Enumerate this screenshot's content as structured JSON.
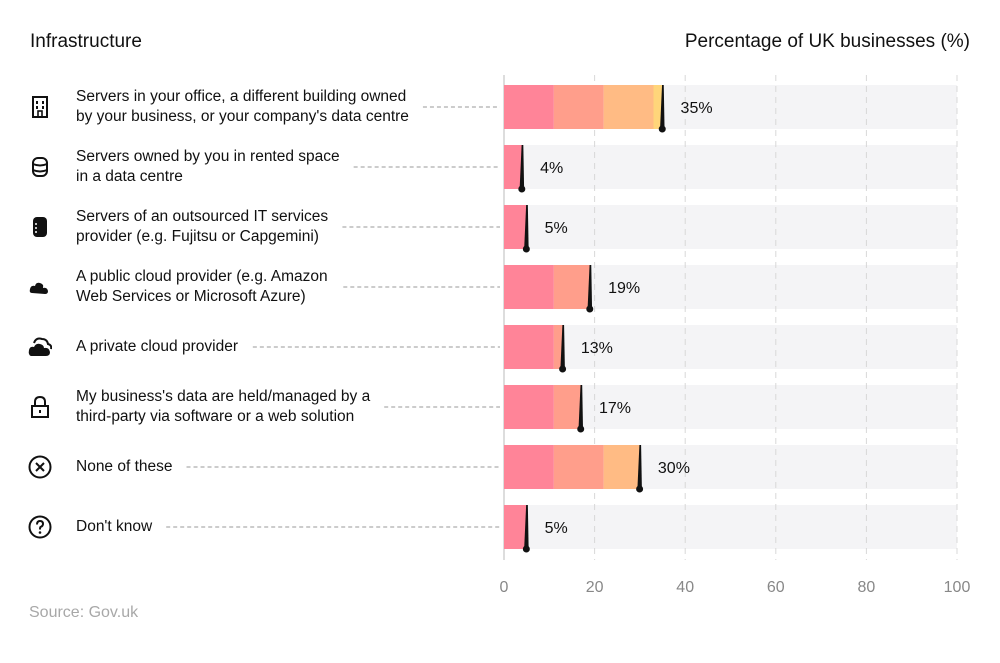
{
  "chart_data": {
    "type": "bar",
    "orientation": "horizontal",
    "left_header": "Infrastructure",
    "xlabel": "Percentage of UK businesses (%)",
    "categories": [
      "Servers in your office, a different building owned\nby your business, or your company's data centre",
      "Servers owned by you in rented space\nin a data centre",
      "Servers of an outsourced IT services\nprovider (e.g. Fujitsu or Capgemini)",
      "A public cloud provider (e.g. Amazon\nWeb Services or Microsoft Azure)",
      "A private cloud provider",
      "My business's data are held/managed by a\nthird-party via software or a web solution",
      "None of these",
      "Don't know"
    ],
    "icons": [
      "building-icon",
      "database-icon",
      "server-icon",
      "cloud-icon",
      "clouds-icon",
      "lock-icon",
      "x-circle-icon",
      "question-circle-icon"
    ],
    "values": [
      35,
      4,
      5,
      19,
      13,
      17,
      30,
      5
    ],
    "data_labels": [
      "35%",
      "4%",
      "5%",
      "19%",
      "13%",
      "17%",
      "30%",
      "5%"
    ],
    "xlim": [
      0,
      100
    ],
    "xticks": [
      0,
      20,
      40,
      60,
      80,
      100
    ],
    "grid": true,
    "colors": {
      "band1": "#ff8498",
      "band2": "#ff9e8b",
      "band3": "#ffbb84",
      "band4": "#ffd57a",
      "track": "#f4f4f6",
      "marker": "#111111"
    }
  },
  "source": "Source: Gov.uk"
}
